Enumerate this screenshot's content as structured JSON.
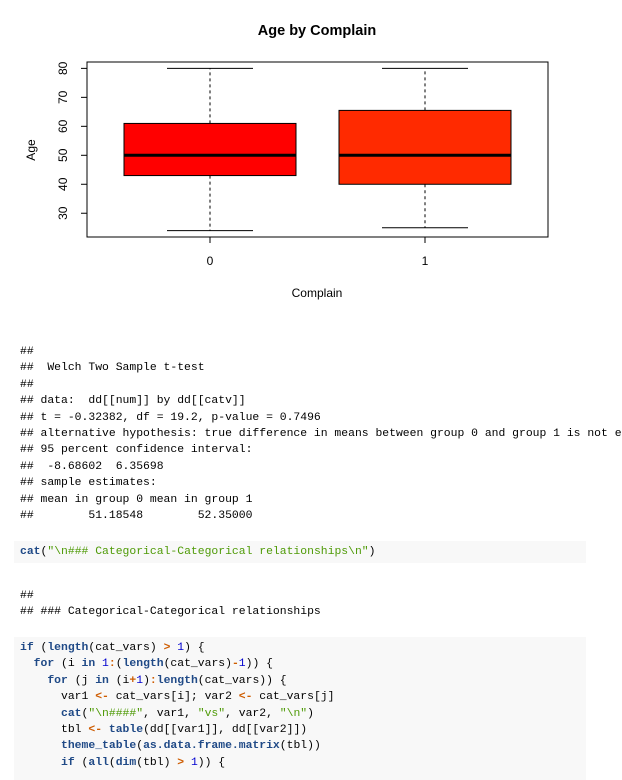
{
  "chart_data": {
    "type": "boxplot",
    "title": "Age by Complain",
    "xlabel": "Complain",
    "ylabel": "Age",
    "categories": [
      "0",
      "1"
    ],
    "series": [
      {
        "color": "#ff0000",
        "min": 24,
        "q1": 43,
        "median": 50,
        "q3": 61,
        "max": 80
      },
      {
        "color": "#ff2a00",
        "min": 25,
        "q1": 40,
        "median": 50,
        "q3": 65.5,
        "max": 80
      }
    ],
    "ylim": [
      21.8,
      82.2
    ],
    "yticks": [
      30,
      40,
      50,
      60,
      70,
      80
    ]
  },
  "output_1": {
    "lines": [
      "##",
      "##  Welch Two Sample t-test",
      "##",
      "## data:  dd[[num]] by dd[[catv]]",
      "## t = -0.32382, df = 19.2, p-value = 0.7496",
      "## alternative hypothesis: true difference in means between group 0 and group 1 is not e",
      "## 95 percent confidence interval:",
      "##  -8.68602  6.35698",
      "## sample estimates:",
      "## mean in group 0 mean in group 1",
      "##        51.18548        52.35000"
    ]
  },
  "code_1": {
    "lines": [
      "cat(\"\\n### Categorical-Categorical relationships\\n\")"
    ]
  },
  "output_2": {
    "lines": [
      "##",
      "## ### Categorical-Categorical relationships"
    ]
  },
  "code_2": {
    "lines": [
      "if (length(cat_vars) > 1) {",
      "  for (i in 1:(length(cat_vars)-1)) {",
      "    for (j in (i+1):length(cat_vars)) {",
      "      var1 <- cat_vars[i]; var2 <- cat_vars[j]",
      "      cat(\"\\n####\", var1, \"vs\", var2, \"\\n\")",
      "      tbl <- table(dd[[var1]], dd[[var2]])",
      "      theme_table(as.data.frame.matrix(tbl))",
      "      if (all(dim(tbl) > 1)) {"
    ]
  }
}
